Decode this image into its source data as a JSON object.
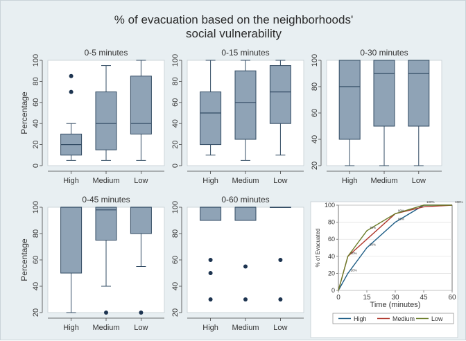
{
  "figure": {
    "title_line1": "% of evacuation based on the neighborhoods'",
    "title_line2": "social vulnerability"
  },
  "colors": {
    "background": "#e8eff2",
    "plot_area": "#ffffff",
    "box_fill": "#8fa3b6",
    "box_stroke": "#324b63",
    "outlier": "#1d3450",
    "high": "#1f5e86",
    "medium": "#b03a2e",
    "low": "#6b7d2a"
  },
  "chart_data": [
    {
      "type": "box",
      "title": "0-5 minutes",
      "ylabel": "Percentage",
      "categories": [
        "High",
        "Medium",
        "Low"
      ],
      "ylim": [
        0,
        100
      ],
      "yticks": [
        0,
        20,
        40,
        60,
        80,
        100
      ],
      "boxes": [
        {
          "category": "High",
          "whisker_low": 5,
          "q1": 10,
          "median": 20,
          "q3": 30,
          "whisker_high": 40,
          "outliers": [
            70,
            85
          ]
        },
        {
          "category": "Medium",
          "whisker_low": 5,
          "q1": 15,
          "median": 40,
          "q3": 70,
          "whisker_high": 95,
          "outliers": []
        },
        {
          "category": "Low",
          "whisker_low": 5,
          "q1": 30,
          "median": 40,
          "q3": 85,
          "whisker_high": 100,
          "outliers": []
        }
      ]
    },
    {
      "type": "box",
      "title": "0-15 minutes",
      "ylabel": "",
      "categories": [
        "High",
        "Medium",
        "Low"
      ],
      "ylim": [
        0,
        100
      ],
      "yticks": [
        0,
        20,
        40,
        60,
        80,
        100
      ],
      "boxes": [
        {
          "category": "High",
          "whisker_low": 10,
          "q1": 20,
          "median": 50,
          "q3": 70,
          "whisker_high": 100,
          "outliers": []
        },
        {
          "category": "Medium",
          "whisker_low": 5,
          "q1": 25,
          "median": 60,
          "q3": 90,
          "whisker_high": 100,
          "outliers": []
        },
        {
          "category": "Low",
          "whisker_low": 10,
          "q1": 40,
          "median": 70,
          "q3": 95,
          "whisker_high": 100,
          "outliers": []
        }
      ]
    },
    {
      "type": "box",
      "title": "0-30 minutes",
      "ylabel": "",
      "categories": [
        "High",
        "Medium",
        "Low"
      ],
      "ylim": [
        20,
        100
      ],
      "yticks": [
        20,
        40,
        60,
        80,
        100
      ],
      "boxes": [
        {
          "category": "High",
          "whisker_low": 20,
          "q1": 40,
          "median": 80,
          "q3": 100,
          "whisker_high": 100,
          "outliers": []
        },
        {
          "category": "Medium",
          "whisker_low": 20,
          "q1": 50,
          "median": 90,
          "q3": 100,
          "whisker_high": 100,
          "outliers": []
        },
        {
          "category": "Low",
          "whisker_low": 20,
          "q1": 50,
          "median": 90,
          "q3": 100,
          "whisker_high": 100,
          "outliers": []
        }
      ]
    },
    {
      "type": "box",
      "title": "0-45 minutes",
      "ylabel": "Percentage",
      "categories": [
        "High",
        "Medium",
        "Low"
      ],
      "ylim": [
        20,
        100
      ],
      "yticks": [
        20,
        40,
        60,
        80,
        100
      ],
      "boxes": [
        {
          "category": "High",
          "whisker_low": 20,
          "q1": 50,
          "median": 100,
          "q3": 100,
          "whisker_high": 100,
          "outliers": []
        },
        {
          "category": "Medium",
          "whisker_low": 40,
          "q1": 75,
          "median": 98,
          "q3": 100,
          "whisker_high": 100,
          "outliers": [
            20
          ]
        },
        {
          "category": "Low",
          "whisker_low": 55,
          "q1": 80,
          "median": 100,
          "q3": 100,
          "whisker_high": 100,
          "outliers": [
            20
          ]
        }
      ]
    },
    {
      "type": "box",
      "title": "0-60 minutes",
      "ylabel": "",
      "categories": [
        "High",
        "Medium",
        "Low"
      ],
      "ylim": [
        20,
        100
      ],
      "yticks": [
        20,
        40,
        60,
        80,
        100
      ],
      "boxes": [
        {
          "category": "High",
          "whisker_low": 90,
          "q1": 90,
          "median": 100,
          "q3": 100,
          "whisker_high": 100,
          "outliers": [
            30,
            50,
            60
          ]
        },
        {
          "category": "Medium",
          "whisker_low": 90,
          "q1": 90,
          "median": 100,
          "q3": 100,
          "whisker_high": 100,
          "outliers": [
            30,
            55
          ]
        },
        {
          "category": "Low",
          "whisker_low": 100,
          "q1": 100,
          "median": 100,
          "q3": 100,
          "whisker_high": 100,
          "outliers": [
            30,
            60
          ]
        }
      ]
    },
    {
      "type": "line",
      "xlabel": "Time (minutes)",
      "ylabel": "% of Evacuated",
      "x": [
        0,
        5,
        15,
        30,
        45,
        60
      ],
      "xticks": [
        0,
        15,
        30,
        45,
        60
      ],
      "yticks": [
        0,
        20,
        40,
        60,
        80,
        100
      ],
      "xlim": [
        0,
        60
      ],
      "ylim": [
        0,
        100
      ],
      "series": [
        {
          "name": "High",
          "color_key": "high",
          "values": [
            0,
            20,
            50,
            80,
            100,
            100
          ]
        },
        {
          "name": "Medium",
          "color_key": "medium",
          "values": [
            0,
            40,
            60,
            90,
            98,
            100
          ]
        },
        {
          "name": "Low",
          "color_key": "low",
          "values": [
            0,
            40,
            70,
            90,
            100,
            100
          ]
        }
      ],
      "annotations": [
        {
          "text": "20%",
          "x": 5,
          "y": 20
        },
        {
          "text": "50%",
          "x": 15,
          "y": 50
        },
        {
          "text": "80%",
          "x": 30,
          "y": 80
        },
        {
          "text": "40%",
          "x": 5,
          "y": 40
        },
        {
          "text": "70%",
          "x": 15,
          "y": 70
        },
        {
          "text": "90%",
          "x": 30,
          "y": 90
        },
        {
          "text": "100%",
          "x": 45,
          "y": 100
        },
        {
          "text": "100%",
          "x": 60,
          "y": 100
        }
      ],
      "legend": "bottom"
    }
  ]
}
